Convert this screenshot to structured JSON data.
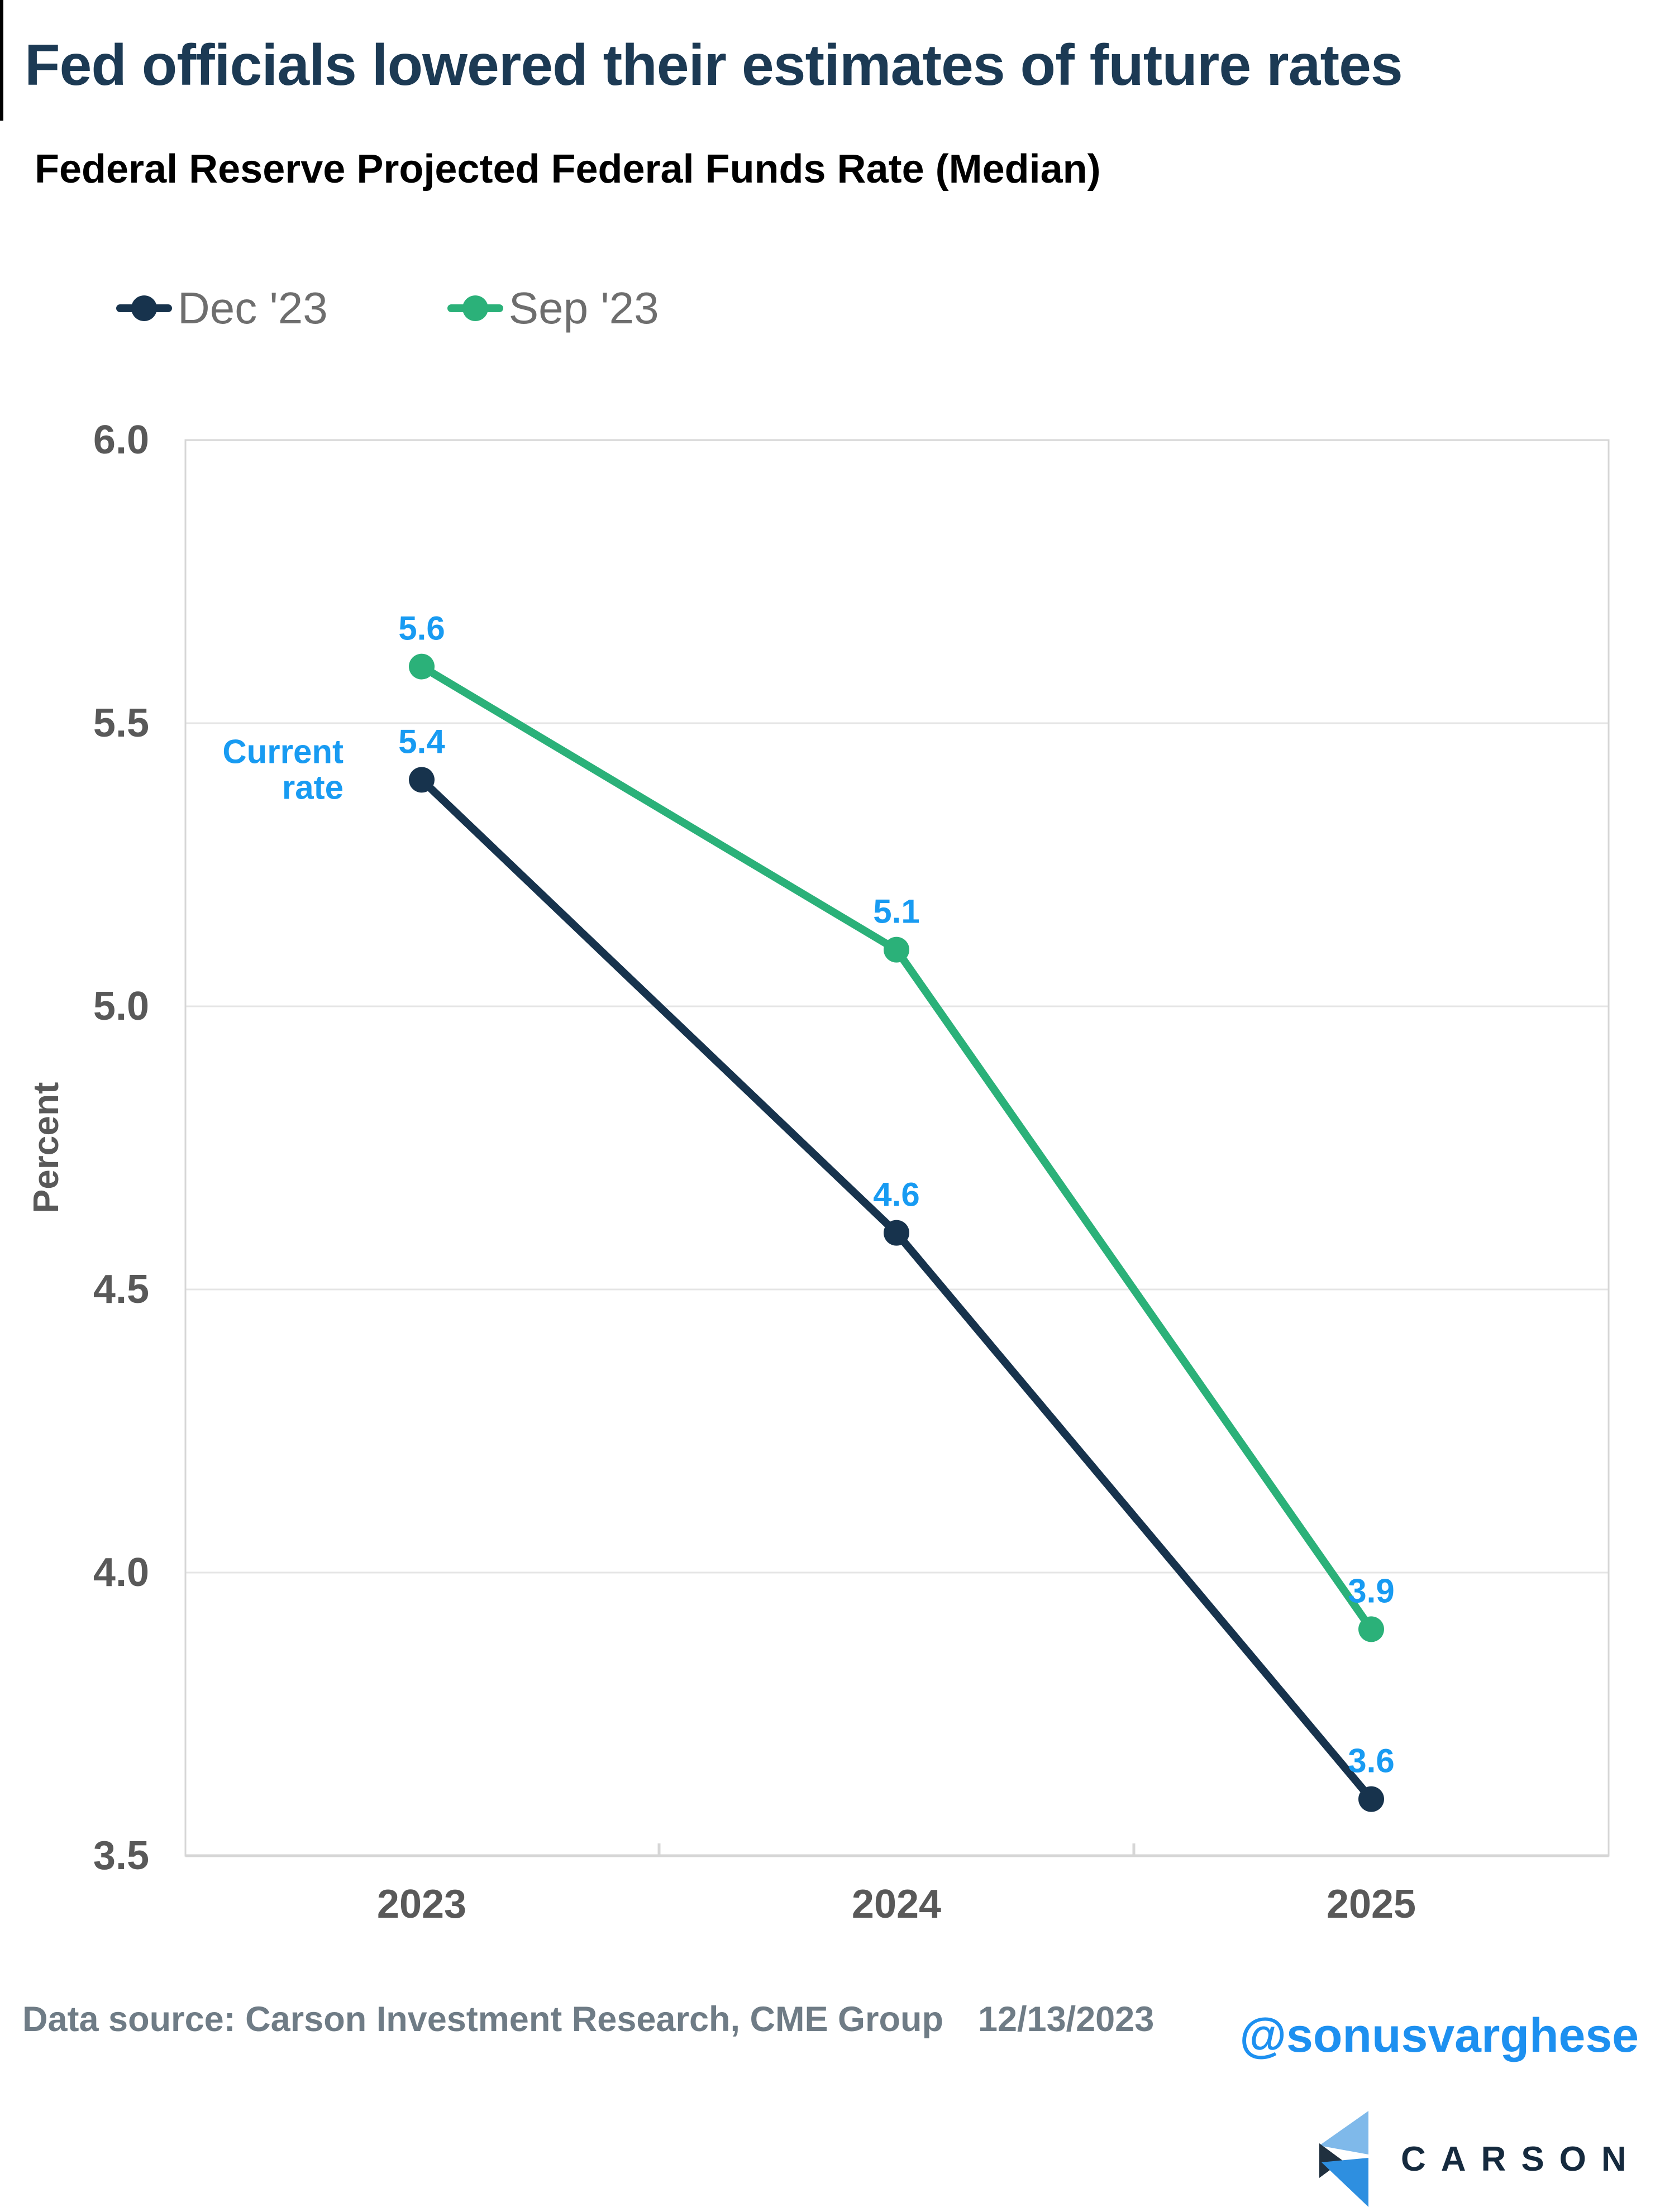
{
  "header": {
    "title": "Fed officials lowered their estimates of future rates",
    "subtitle": "Federal Reserve Projected Federal Funds Rate (Median)"
  },
  "legend": [
    {
      "label": "Dec '23",
      "color": "#17334D"
    },
    {
      "label": "Sep '23",
      "color": "#2BB179"
    }
  ],
  "chart_data": {
    "type": "line",
    "categories": [
      "2023",
      "2024",
      "2025"
    ],
    "series": [
      {
        "name": "Dec '23",
        "color": "#17334D",
        "values": [
          5.4,
          4.6,
          3.6
        ]
      },
      {
        "name": "Sep '23",
        "color": "#2BB179",
        "values": [
          5.6,
          5.1,
          3.9
        ]
      }
    ],
    "title": "Federal Reserve Projected Federal Funds Rate (Median)",
    "xlabel": "",
    "ylabel": "Percent",
    "ylim": [
      3.5,
      6.0
    ],
    "yticks": [
      "3.5",
      "4.0",
      "4.5",
      "5.0",
      "5.5",
      "6.0"
    ],
    "grid": "horizontal",
    "legend_position": "top-left",
    "value_label_color": "#189BF2",
    "annotation": {
      "lines": [
        "Current",
        "rate"
      ],
      "series_index": 0,
      "point_index": 0,
      "color": "#189BF2"
    }
  },
  "footer": {
    "source": "Data source: Carson Investment Research, CME Group",
    "date": "12/13/2023",
    "handle": "@sonusvarghese",
    "brand_wordmark": "CARSON"
  },
  "colors": {
    "title": "#1C3A54",
    "subtitle": "#000000",
    "axis_text": "#595959",
    "legend_text": "#6E6E6E",
    "grid": "#E5E5E5",
    "axis_line": "#D6D6D6",
    "footer_text": "#6F7C86",
    "handle": "#1D90F0",
    "brand_navy": "#152A3E",
    "logo_light_blue": "#7FB9EA",
    "logo_blue": "#2E8FE0",
    "logo_dark": "#20303F",
    "accent_bar": "#000000"
  }
}
